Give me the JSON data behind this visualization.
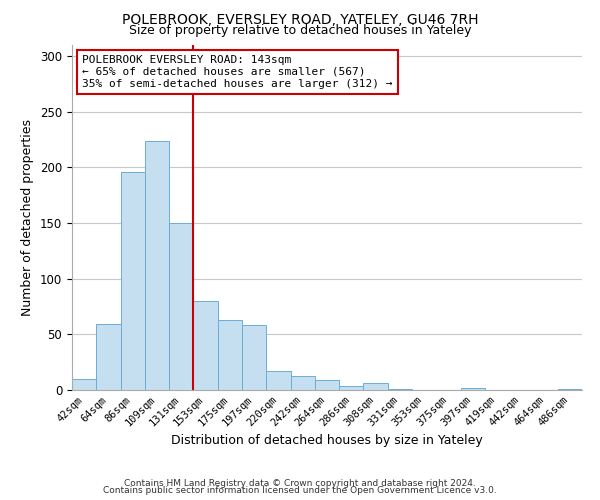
{
  "title_line1": "POLEBROOK, EVERSLEY ROAD, YATELEY, GU46 7RH",
  "title_line2": "Size of property relative to detached houses in Yateley",
  "xlabel": "Distribution of detached houses by size in Yateley",
  "ylabel": "Number of detached properties",
  "bar_labels": [
    "42sqm",
    "64sqm",
    "86sqm",
    "109sqm",
    "131sqm",
    "153sqm",
    "175sqm",
    "197sqm",
    "220sqm",
    "242sqm",
    "264sqm",
    "286sqm",
    "308sqm",
    "331sqm",
    "353sqm",
    "375sqm",
    "397sqm",
    "419sqm",
    "442sqm",
    "464sqm",
    "486sqm"
  ],
  "bar_values": [
    10,
    59,
    196,
    224,
    150,
    80,
    63,
    58,
    17,
    13,
    9,
    4,
    6,
    1,
    0,
    0,
    2,
    0,
    0,
    0,
    1
  ],
  "bar_color": "#c6dff0",
  "bar_edgecolor": "#6baed6",
  "vline_x_index": 4.5,
  "vline_color": "#cc0000",
  "annotation_title": "POLEBROOK EVERSLEY ROAD: 143sqm",
  "annotation_line2": "← 65% of detached houses are smaller (567)",
  "annotation_line3": "35% of semi-detached houses are larger (312) →",
  "annotation_box_edgecolor": "#cc0000",
  "ylim": [
    0,
    310
  ],
  "yticks": [
    0,
    50,
    100,
    150,
    200,
    250,
    300
  ],
  "footer_line1": "Contains HM Land Registry data © Crown copyright and database right 2024.",
  "footer_line2": "Contains public sector information licensed under the Open Government Licence v3.0.",
  "background_color": "#ffffff",
  "grid_color": "#c8c8c8"
}
